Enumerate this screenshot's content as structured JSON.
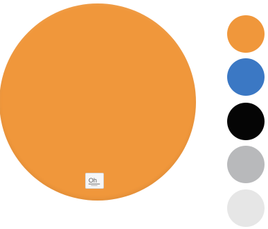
{
  "product": {
    "selected_color": "#f0973b",
    "brand_logo_icon": "oh-logo-icon"
  },
  "swatches": [
    {
      "name": "orange",
      "color": "#f0973b"
    },
    {
      "name": "blue",
      "color": "#3b78c4"
    },
    {
      "name": "black",
      "color": "#050505"
    },
    {
      "name": "gray",
      "color": "#b8b9bb"
    },
    {
      "name": "light-gray",
      "color": "#e6e6e6"
    }
  ]
}
